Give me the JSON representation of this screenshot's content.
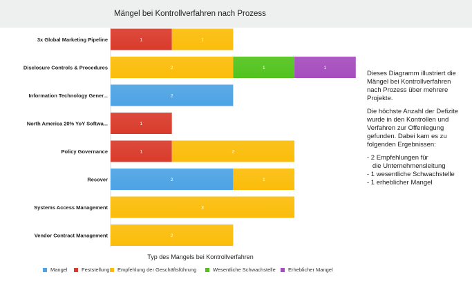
{
  "chart_data": {
    "type": "bar",
    "orientation": "horizontal",
    "stacked": true,
    "title": "Mängel bei Kontrollverfahren nach Prozess",
    "xlabel": "Typ des Mangels bei Kontrollverfahren",
    "ylabel": "",
    "xlim": [
      0,
      4
    ],
    "grid": false,
    "legend_position": "bottom",
    "categories": [
      "3x Global Marketing Pipeline",
      "Disclosure Controls & Procedures",
      "Information Technology Gener...",
      "North America 20% YoY Softwa...",
      "Policy Governance",
      "Recover",
      "Systems Access Management",
      "Vendor Contract Management"
    ],
    "series": [
      {
        "name": "Mangel",
        "color": "#4da3e4",
        "values": [
          0,
          0,
          2,
          0,
          0,
          2,
          0,
          0
        ]
      },
      {
        "name": "Feststellung",
        "color": "#d93b2b",
        "values": [
          1,
          0,
          0,
          1,
          1,
          0,
          0,
          0
        ]
      },
      {
        "name": "Empfehlung der Geschäftsführung",
        "color": "#fbbd0a",
        "values": [
          1,
          2,
          0,
          0,
          2,
          1,
          3,
          2
        ]
      },
      {
        "name": "Wesentliche Schwachstelle",
        "color": "#52c31d",
        "values": [
          0,
          1,
          0,
          0,
          0,
          0,
          0,
          0
        ]
      },
      {
        "name": "Erheblicher Mangel",
        "color": "#a64dbe",
        "values": [
          0,
          1,
          0,
          0,
          0,
          0,
          0,
          0
        ]
      }
    ]
  },
  "note": {
    "intro": "Dieses Diagramm illustriert die Mängel bei Kontrollverfahren nach Prozess über mehrere Projekte.",
    "finding": "Die höchste Anzahl der Defizite wurde in den Kontrollen und Verfahren zur Offenlegung gefunden. Dabei kam es zu folgenden Ergebnissen:",
    "items": [
      "- 2 Empfehlungen für\n   die Unternehmensleitung",
      "- 1 wesentliche Schwachstelle",
      "- 1 erheblicher Mangel"
    ]
  }
}
